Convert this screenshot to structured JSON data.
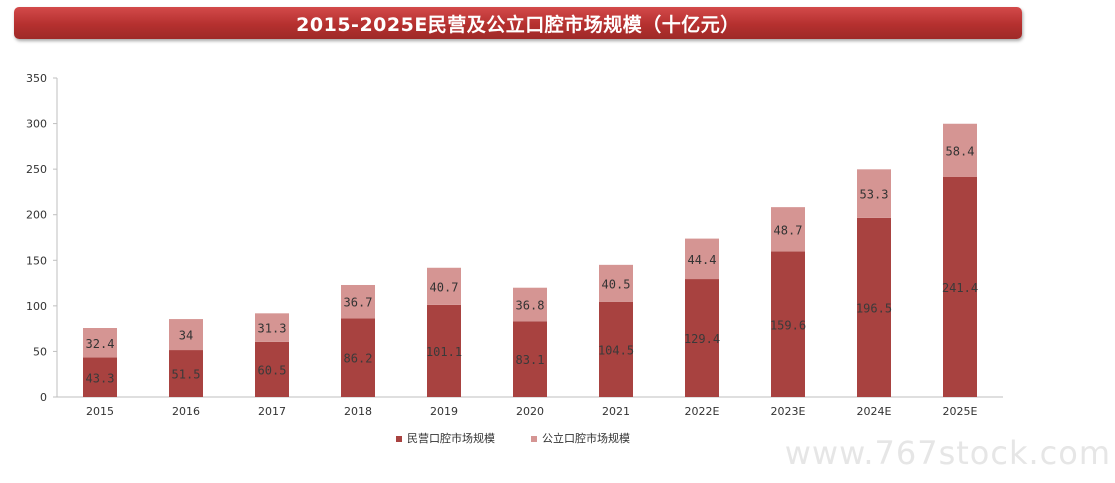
{
  "title": "2015-2025E民营及公立口腔市场规模（十亿元）",
  "watermark": "www.767stock.com",
  "colors": {
    "title_bar": "#b5302f",
    "private_series": "#a84240",
    "public_series": "#d59593",
    "axis": "#bfbfbf",
    "tick_text": "#333333",
    "private_label_text": "#3a3a3a",
    "public_label_text": "#333333"
  },
  "chart_data": {
    "type": "bar",
    "stacked": true,
    "categories": [
      "2015",
      "2016",
      "2017",
      "2018",
      "2019",
      "2020",
      "2021",
      "2022E",
      "2023E",
      "2024E",
      "2025E"
    ],
    "series": [
      {
        "name": "民营口腔市场规模",
        "values": [
          43.3,
          51.5,
          60.5,
          86.2,
          101.1,
          83.1,
          104.5,
          129.4,
          159.6,
          196.5,
          241.4
        ],
        "labels": [
          "43.3",
          "51.5",
          "60.5",
          "86.2",
          "101.1",
          "83.1",
          "104.5",
          "129.4",
          "159.6",
          "196.5",
          "241.4"
        ]
      },
      {
        "name": "公立口腔市场规模",
        "values": [
          32.4,
          34,
          31.3,
          36.7,
          40.7,
          36.8,
          40.5,
          44.4,
          48.7,
          53.3,
          58.4
        ],
        "labels": [
          "32.4",
          "34",
          "31.3",
          "36.7",
          "40.7",
          "36.8",
          "40.5",
          "44.4",
          "48.7",
          "53.3",
          "58.4"
        ]
      }
    ],
    "ylim": [
      0,
      350
    ],
    "yticks": [
      "0",
      "50",
      "100",
      "150",
      "200",
      "250",
      "300",
      "350"
    ],
    "grid": false,
    "legend_position": "bottom"
  }
}
